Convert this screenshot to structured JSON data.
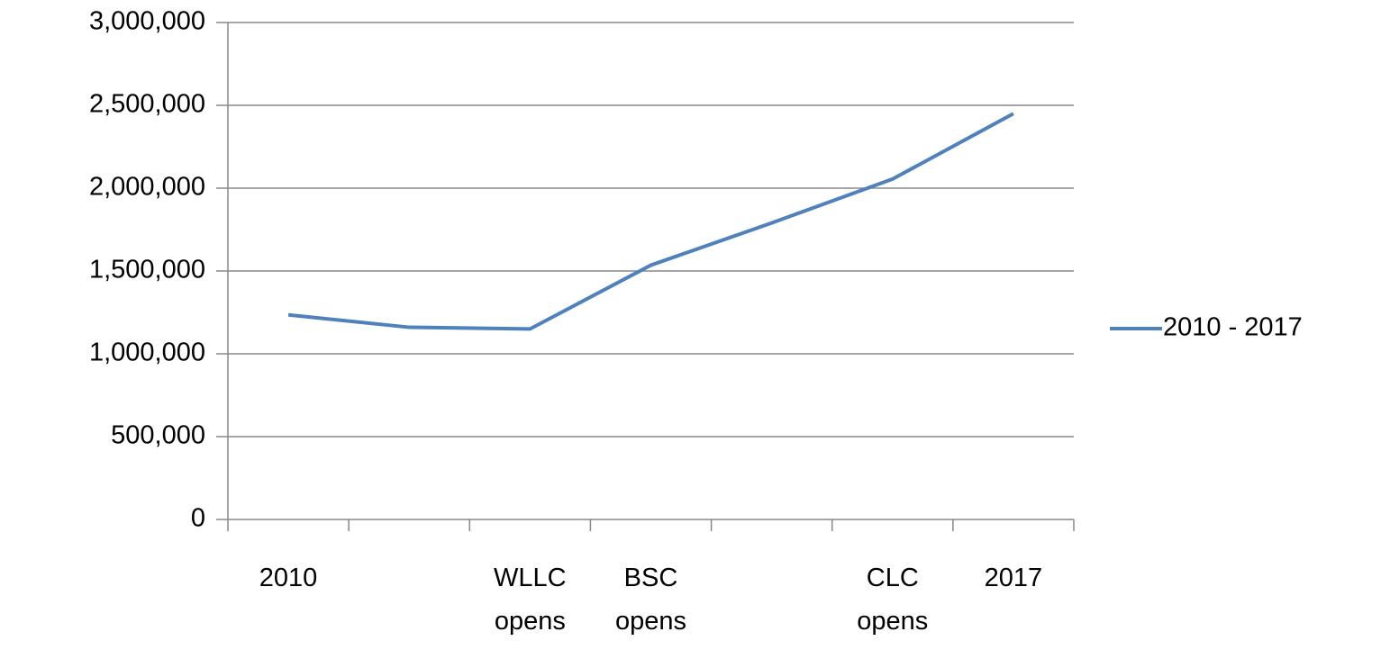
{
  "chart_data": {
    "type": "line",
    "categories": [
      "2010",
      null,
      "WLLC opens",
      "BSC opens",
      null,
      "CLC opens",
      "2017"
    ],
    "series": [
      {
        "name": "2010 - 2017",
        "color": "#4f81bd",
        "values": [
          1235000,
          1160000,
          1150000,
          1535000,
          1790000,
          2055000,
          2450000
        ]
      }
    ],
    "ylim": [
      0,
      3000000
    ],
    "yticks": [
      0,
      {
        "value": 500000,
        "label": "500,000"
      },
      {
        "value": 1000000,
        "label": "1,000,000"
      },
      {
        "value": 1500000,
        "label": "1,500,000"
      },
      {
        "value": 2000000,
        "label": "2,000,000"
      },
      {
        "value": 2500000,
        "label": "2,500,000"
      },
      {
        "value": 3000000,
        "label": "3,000,000"
      }
    ],
    "grid": true,
    "legend": "right"
  }
}
